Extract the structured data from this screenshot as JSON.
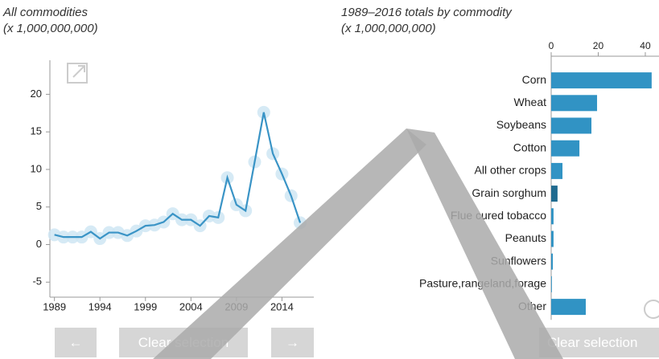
{
  "chart_data": [
    {
      "type": "line",
      "title": "All commodities",
      "subtitle": "(x 1,000,000,000)",
      "x": [
        1989,
        1990,
        1991,
        1992,
        1993,
        1994,
        1995,
        1996,
        1997,
        1998,
        1999,
        2000,
        2001,
        2002,
        2003,
        2004,
        2005,
        2006,
        2007,
        2008,
        2009,
        2010,
        2011,
        2012,
        2013,
        2014,
        2015,
        2016
      ],
      "values": [
        1.3,
        1.0,
        1.0,
        1.0,
        1.7,
        0.8,
        1.6,
        1.6,
        1.2,
        1.8,
        2.5,
        2.6,
        3.0,
        4.1,
        3.3,
        3.3,
        2.5,
        3.8,
        3.6,
        8.9,
        5.3,
        4.5,
        11.0,
        17.6,
        12.1,
        9.4,
        6.5,
        2.9
      ],
      "color": "#3a94c6",
      "xlim": [
        1988.5,
        2017.5
      ],
      "xticks": [
        1989,
        1994,
        1999,
        2004,
        2009,
        2014
      ],
      "ylim": [
        -7,
        24
      ],
      "yticks": [
        -5,
        0,
        5,
        10,
        15,
        20
      ]
    },
    {
      "type": "bar",
      "orientation": "horizontal",
      "title": "1989–2016 totals by commodity",
      "subtitle": "(x 1,000,000,000)",
      "categories": [
        "Corn",
        "Wheat",
        "Soybeans",
        "Cotton",
        "All other crops",
        "Grain sorghum",
        "Flue cured tobacco",
        "Peanuts",
        "Sunflowers",
        "Pasture,rangeland,forage",
        "Other"
      ],
      "values": [
        42.7,
        19.5,
        17.1,
        12.0,
        4.8,
        2.7,
        1.0,
        1.0,
        0.7,
        0.3,
        14.7
      ],
      "colors": [
        "#3193c4",
        "#3193c4",
        "#3193c4",
        "#3193c4",
        "#3193c4",
        "#1f6a8f",
        "#3193c4",
        "#3193c4",
        "#3193c4",
        "#3193c4",
        "#3193c4"
      ],
      "xlim": [
        0,
        45
      ],
      "xticks": [
        0,
        20,
        40
      ]
    }
  ],
  "controls": [
    "←",
    "Clear selection",
    "→",
    "Clear selection"
  ]
}
